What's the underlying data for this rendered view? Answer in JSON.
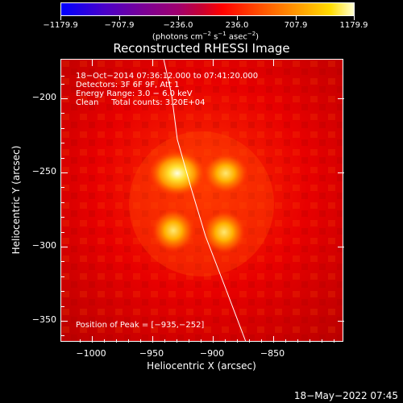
{
  "colorbar": {
    "labels": [
      "−1179.9",
      "−707.9",
      "−236.0",
      "236.0",
      "707.9",
      "1179.9"
    ],
    "units": {
      "prefix": "(photons cm",
      "exp1": "−2",
      "mid1": " s",
      "exp2": "−1",
      "mid2": " asec",
      "exp3": "−2",
      "suffix": ")"
    }
  },
  "title": "Reconstructed RHESSI Image",
  "info": {
    "time": "18−Oct−2014 07:36:12.000 to 07:41:20.000",
    "detectors": "Detectors: 3F 6F 9F, Att 1",
    "energy": "Energy Range: 3.0 − 6.0 keV",
    "algorithm": "Clean     Total counts: 3.20E+04",
    "peak": "Position of Peak = [−935,−252]"
  },
  "axes": {
    "xlabel": "Heliocentric X (arcsec)",
    "ylabel": "Heliocentric Y (arcsec)",
    "xticks": [
      "−1000",
      "−950",
      "−900",
      "−850"
    ],
    "yticks": [
      "−200",
      "−250",
      "−300",
      "−350"
    ],
    "xlim": [
      -1018,
      -925
    ],
    "ylim": [
      -368,
      -175
    ]
  },
  "footer": {
    "date": "18−May−2022 07:45"
  }
}
